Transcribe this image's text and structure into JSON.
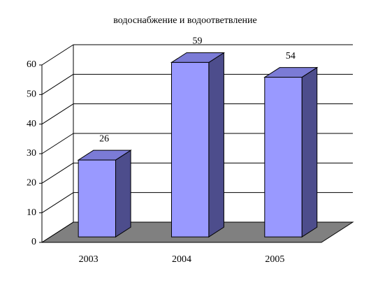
{
  "chart_data": {
    "type": "bar3d",
    "title": "водоснабжение и водоответвление",
    "categories": [
      "2003",
      "2004",
      "2005"
    ],
    "values": [
      26,
      59,
      54
    ],
    "color": "#9999ff",
    "ylim": [
      0,
      60
    ],
    "yticks": [
      0,
      10,
      20,
      30,
      40,
      50,
      60
    ],
    "grid": true
  }
}
